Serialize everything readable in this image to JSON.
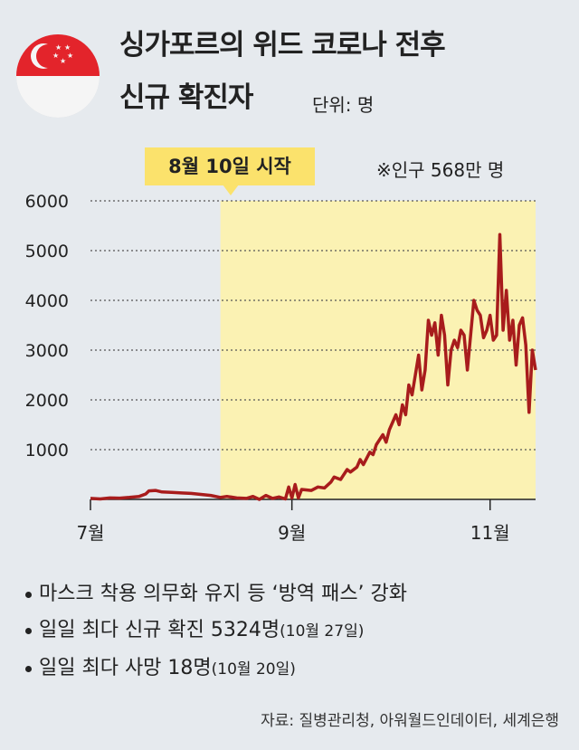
{
  "title_line1": "싱가포르의 위드 코로나 전후",
  "title_line2": "신규 확진자",
  "unit": "단위: 명",
  "callout": "8월 10일 시작",
  "population_note": "※인구 568만 명",
  "notes": [
    {
      "main": "마스크 착용 의무화 유지 등 ‘방역 패스’ 강화",
      "sub": ""
    },
    {
      "main": "일일 최다 신규 확진  5324명",
      "sub": "(10월 27일)"
    },
    {
      "main": "일일 최다 사망 18명",
      "sub": "(10월 20일)"
    }
  ],
  "source": "자료: 질병관리청, 아워월드인데이터, 세계은행",
  "colors": {
    "line": "#a81c1c",
    "highlight": "#fbf2b3",
    "callout": "#fbe26c",
    "flag_red": "#e3242b"
  },
  "chart_data": {
    "type": "line",
    "ylim": [
      0,
      6000
    ],
    "y_ticks": [
      1000,
      2000,
      3000,
      4000,
      5000,
      6000
    ],
    "x_ticks": [
      {
        "x": 0,
        "label": "7월"
      },
      {
        "x": 62,
        "label": "9월"
      },
      {
        "x": 123,
        "label": "11월"
      }
    ],
    "highlight_from_x": 40,
    "series": [
      {
        "values": [
          [
            0,
            20
          ],
          [
            3,
            10
          ],
          [
            6,
            30
          ],
          [
            9,
            25
          ],
          [
            12,
            40
          ],
          [
            15,
            60
          ],
          [
            17,
            110
          ],
          [
            18,
            170
          ],
          [
            20,
            180
          ],
          [
            22,
            150
          ],
          [
            25,
            140
          ],
          [
            28,
            130
          ],
          [
            31,
            120
          ],
          [
            34,
            100
          ],
          [
            37,
            80
          ],
          [
            40,
            40
          ],
          [
            42,
            60
          ],
          [
            45,
            30
          ],
          [
            48,
            20
          ],
          [
            50,
            60
          ],
          [
            52,
            0
          ],
          [
            54,
            80
          ],
          [
            56,
            20
          ],
          [
            58,
            50
          ],
          [
            60,
            10
          ],
          [
            61,
            250
          ],
          [
            62,
            30
          ],
          [
            63,
            300
          ],
          [
            64,
            30
          ],
          [
            65,
            200
          ],
          [
            68,
            180
          ],
          [
            70,
            250
          ],
          [
            72,
            230
          ],
          [
            74,
            350
          ],
          [
            75,
            450
          ],
          [
            77,
            400
          ],
          [
            79,
            600
          ],
          [
            80,
            550
          ],
          [
            82,
            650
          ],
          [
            83,
            800
          ],
          [
            84,
            700
          ],
          [
            86,
            950
          ],
          [
            87,
            900
          ],
          [
            88,
            1100
          ],
          [
            90,
            1300
          ],
          [
            91,
            1150
          ],
          [
            92,
            1400
          ],
          [
            94,
            1700
          ],
          [
            95,
            1500
          ],
          [
            96,
            1900
          ],
          [
            97,
            1700
          ],
          [
            98,
            2300
          ],
          [
            99,
            2100
          ],
          [
            100,
            2500
          ],
          [
            101,
            2900
          ],
          [
            102,
            2200
          ],
          [
            103,
            2600
          ],
          [
            104,
            3600
          ],
          [
            105,
            3300
          ],
          [
            106,
            3550
          ],
          [
            107,
            2900
          ],
          [
            108,
            3700
          ],
          [
            109,
            3300
          ],
          [
            110,
            2300
          ],
          [
            111,
            3000
          ],
          [
            112,
            3200
          ],
          [
            113,
            3050
          ],
          [
            114,
            3400
          ],
          [
            115,
            3300
          ],
          [
            116,
            2600
          ],
          [
            117,
            3300
          ],
          [
            118,
            4000
          ],
          [
            119,
            3800
          ],
          [
            120,
            3700
          ],
          [
            121,
            3250
          ],
          [
            122,
            3400
          ],
          [
            123,
            3700
          ],
          [
            124,
            3200
          ],
          [
            125,
            3300
          ],
          [
            126,
            5324
          ],
          [
            127,
            3400
          ],
          [
            128,
            4200
          ],
          [
            129,
            3200
          ],
          [
            130,
            3600
          ],
          [
            131,
            2700
          ],
          [
            132,
            3500
          ],
          [
            133,
            3650
          ],
          [
            134,
            3100
          ],
          [
            135,
            1750
          ],
          [
            136,
            3000
          ],
          [
            137,
            2600
          ]
        ]
      }
    ]
  }
}
